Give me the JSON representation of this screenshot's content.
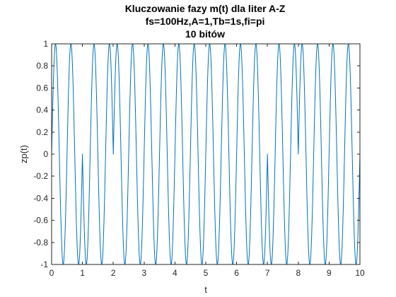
{
  "chart_data": {
    "type": "line",
    "title_lines": [
      "Kluczowanie fazy m(t) dla liter A-Z",
      "fs=100Hz,A=1,Tb=1s,fi=pi",
      "10 bitów"
    ],
    "xlabel": "t",
    "ylabel": "zp(t)",
    "xlim": [
      0,
      10
    ],
    "ylim": [
      -1,
      1
    ],
    "x_ticks": [
      0,
      1,
      2,
      3,
      4,
      5,
      6,
      7,
      8,
      9,
      10
    ],
    "x_tick_labels": [
      "0",
      "1",
      "2",
      "3",
      "4",
      "5",
      "6",
      "7",
      "8",
      "9",
      "10"
    ],
    "y_ticks": [
      -1,
      -0.8,
      -0.6,
      -0.4,
      -0.2,
      0,
      0.2,
      0.4,
      0.6,
      0.8,
      1
    ],
    "y_tick_labels": [
      "-1",
      "-0.8",
      "-0.6",
      "-0.4",
      "-0.2",
      "0",
      "0.2",
      "0.4",
      "0.6",
      "0.8",
      "1"
    ],
    "grid": false,
    "series": [
      {
        "color": "#0072BD",
        "amplitude": 1,
        "carrier_frequency_hz": 2,
        "bit_duration_s": 1,
        "bits": [
          1,
          0,
          1,
          1,
          1,
          1,
          1,
          0,
          1,
          1
        ]
      }
    ]
  }
}
